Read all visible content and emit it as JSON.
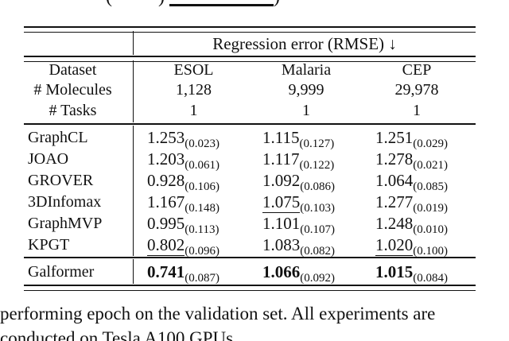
{
  "top_fragment": {
    "left_paren": "(",
    "mid_paren": ")",
    "right_paren": ")"
  },
  "table": {
    "group_header": "Regression error (RMSE) ↓",
    "meta": {
      "dataset_label": "Dataset",
      "molecules_label": "# Molecules",
      "tasks_label": "# Tasks",
      "datasets": [
        "ESOL",
        "Malaria",
        "CEP"
      ],
      "molecules": [
        "1,128",
        "9,999",
        "29,978"
      ],
      "tasks": [
        "1",
        "1",
        "1"
      ]
    },
    "rows": [
      {
        "method": "GraphCL",
        "cells": [
          {
            "value": "1.253",
            "std": "(0.023)"
          },
          {
            "value": "1.115",
            "std": "(0.127)"
          },
          {
            "value": "1.251",
            "std": "(0.029)"
          }
        ]
      },
      {
        "method": "JOAO",
        "cells": [
          {
            "value": "1.203",
            "std": "(0.061)"
          },
          {
            "value": "1.117",
            "std": "(0.122)"
          },
          {
            "value": "1.278",
            "std": "(0.021)"
          }
        ]
      },
      {
        "method": "GROVER",
        "cells": [
          {
            "value": "0.928",
            "std": "(0.106)"
          },
          {
            "value": "1.092",
            "std": "(0.086)"
          },
          {
            "value": "1.064",
            "std": "(0.085)"
          }
        ]
      },
      {
        "method": "3DInfomax",
        "cells": [
          {
            "value": "1.167",
            "std": "(0.148)"
          },
          {
            "value": "1.075",
            "std": "(0.103)",
            "underline": true
          },
          {
            "value": "1.277",
            "std": "(0.019)"
          }
        ]
      },
      {
        "method": "GraphMVP",
        "cells": [
          {
            "value": "0.995",
            "std": "(0.113)"
          },
          {
            "value": "1.101",
            "std": "(0.107)"
          },
          {
            "value": "1.248",
            "std": "(0.010)"
          }
        ]
      },
      {
        "method": "KPGT",
        "cells": [
          {
            "value": "0.802",
            "std": "(0.096)",
            "underline": true
          },
          {
            "value": "1.083",
            "std": "(0.082)"
          },
          {
            "value": "1.020",
            "std": "(0.100)",
            "underline": true
          }
        ]
      }
    ],
    "final_row": {
      "method": "Galformer",
      "bold": true,
      "cells": [
        {
          "value": "0.741",
          "std": "(0.087)"
        },
        {
          "value": "1.066",
          "std": "(0.092)"
        },
        {
          "value": "1.015",
          "std": "(0.084)"
        }
      ]
    }
  },
  "caption": {
    "line1": "performing epoch on the validation set. All experiments are",
    "line2": "conducted on Tesla A100 GPUs."
  }
}
